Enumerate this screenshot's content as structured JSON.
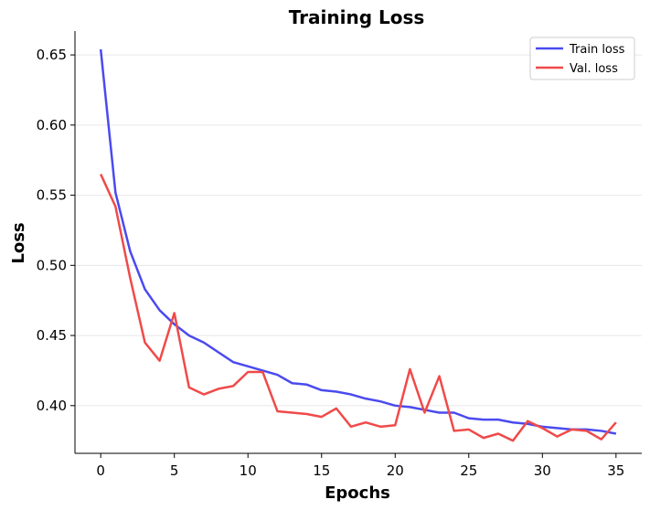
{
  "chart_data": {
    "type": "line",
    "title": "Training Loss",
    "xlabel": "Epochs",
    "ylabel": "Loss",
    "xlim": [
      -1.75,
      36.75
    ],
    "ylim": [
      0.366,
      0.667
    ],
    "x_ticks": [
      0,
      5,
      10,
      15,
      20,
      25,
      30,
      35
    ],
    "y_ticks": [
      0.4,
      0.45,
      0.5,
      0.55,
      0.6,
      0.65
    ],
    "y_tick_labels": [
      "0.40",
      "0.45",
      "0.50",
      "0.55",
      "0.60",
      "0.65"
    ],
    "grid": "horizontal",
    "legend_position": "top-right",
    "x": [
      0,
      1,
      2,
      3,
      4,
      5,
      6,
      7,
      8,
      9,
      10,
      11,
      12,
      13,
      14,
      15,
      16,
      17,
      18,
      19,
      20,
      21,
      22,
      23,
      24,
      25,
      26,
      27,
      28,
      29,
      30,
      31,
      32,
      33,
      34,
      35
    ],
    "series": [
      {
        "name": "Train loss",
        "color": "#4a4af0",
        "values": [
          0.654,
          0.552,
          0.51,
          0.483,
          0.468,
          0.458,
          0.45,
          0.445,
          0.438,
          0.431,
          0.428,
          0.425,
          0.422,
          0.416,
          0.415,
          0.411,
          0.41,
          0.408,
          0.405,
          0.403,
          0.4,
          0.399,
          0.397,
          0.395,
          0.395,
          0.391,
          0.39,
          0.39,
          0.388,
          0.387,
          0.385,
          0.384,
          0.383,
          0.383,
          0.382,
          0.38
        ]
      },
      {
        "name": "Val. loss",
        "color": "#f04a4a",
        "values": [
          0.565,
          0.542,
          0.491,
          0.445,
          0.432,
          0.466,
          0.413,
          0.408,
          0.412,
          0.414,
          0.424,
          0.424,
          0.396,
          0.395,
          0.394,
          0.392,
          0.398,
          0.385,
          0.388,
          0.385,
          0.386,
          0.426,
          0.395,
          0.421,
          0.382,
          0.383,
          0.377,
          0.38,
          0.375,
          0.389,
          0.384,
          0.378,
          0.383,
          0.382,
          0.376,
          0.388
        ]
      }
    ]
  }
}
